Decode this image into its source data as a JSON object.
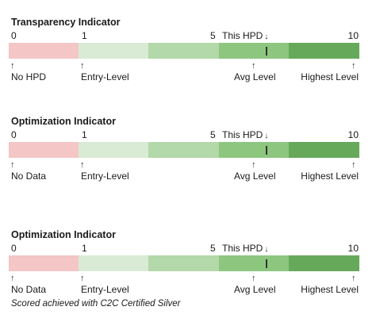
{
  "indicators": [
    {
      "title": "Transparency Indicator",
      "scale": {
        "min": "0",
        "low": "1",
        "mid": "5",
        "max": "10",
        "this_label": "This HPD",
        "this_arrow": "↓"
      },
      "levels": [
        "No HPD",
        "Entry-Level",
        "Avg Level",
        "Highest Level"
      ],
      "tick_arrow": "↑",
      "score": 7
    },
    {
      "title": "Optimization Indicator",
      "scale": {
        "min": "0",
        "low": "1",
        "mid": "5",
        "max": "10",
        "this_label": "This HPD",
        "this_arrow": "↓"
      },
      "levels": [
        "No Data",
        "Entry-Level",
        "Avg Level",
        "Highest Level"
      ],
      "tick_arrow": "↑",
      "score": 7
    },
    {
      "title": "Optimization Indicator",
      "scale": {
        "min": "0",
        "low": "1",
        "mid": "5",
        "max": "10",
        "this_label": "This HPD",
        "this_arrow": "↓"
      },
      "levels": [
        "No Data",
        "Entry-Level",
        "Avg Level",
        "Highest Level"
      ],
      "tick_arrow": "↑",
      "score": 7
    }
  ],
  "note": "Scored achieved with C2C Certified Silver",
  "colors": {
    "segment_1": "#f4c6c6",
    "segment_2": "#d9ebd5",
    "segment_3": "#b3d8aa",
    "segment_4": "#8dc67f",
    "segment_5": "#66a95a",
    "marker": "#333333"
  }
}
